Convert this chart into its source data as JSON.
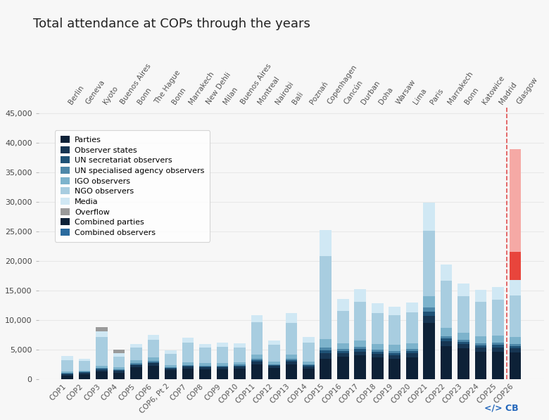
{
  "title": "Total attendance at COPs through the years",
  "cops": [
    "COP1",
    "COP2",
    "COP3",
    "COP4",
    "COP5",
    "COP6",
    "COP6, Pt 2",
    "COP7",
    "COP8",
    "COP9",
    "COP10",
    "COP11",
    "COP12",
    "COP13",
    "COP14",
    "COP15",
    "COP16",
    "COP17",
    "COP18",
    "COP19",
    "COP20",
    "COP21",
    "COP22",
    "COP23",
    "COP24",
    "COP25",
    "COP26"
  ],
  "cities": [
    "Berlin",
    "Geneva",
    "Kyoto",
    "Buenos Aires",
    "Bonn",
    "The Hague",
    "Bonn",
    "Marrakech",
    "New Dehli",
    "Milan",
    "Buenos Aires",
    "Montreal",
    "Nairobi",
    "Bali",
    "Poznań",
    "Copenhagen",
    "Cancún",
    "Durban",
    "Doha",
    "Warsaw",
    "Lima",
    "Paris",
    "Marrakech",
    "Bonn",
    "Katowice",
    "Madrid",
    "Glasgow"
  ],
  "parties": [
    650,
    850,
    1300,
    1100,
    2000,
    2300,
    1500,
    1800,
    1700,
    1700,
    1800,
    2500,
    1900,
    2500,
    1800,
    3500,
    3800,
    4000,
    3700,
    3500,
    3700,
    9500,
    5600,
    5200,
    4600,
    4700,
    4500
  ],
  "observer_st": [
    200,
    200,
    300,
    300,
    350,
    400,
    250,
    300,
    280,
    300,
    320,
    450,
    320,
    450,
    350,
    900,
    600,
    700,
    600,
    600,
    650,
    1200,
    800,
    700,
    700,
    700,
    700
  ],
  "un_sec": [
    100,
    100,
    150,
    150,
    180,
    200,
    120,
    150,
    150,
    150,
    160,
    250,
    160,
    250,
    180,
    500,
    350,
    400,
    350,
    350,
    360,
    700,
    450,
    400,
    400,
    400,
    400
  ],
  "un_spec": [
    100,
    100,
    150,
    150,
    180,
    200,
    120,
    150,
    150,
    150,
    160,
    250,
    160,
    250,
    180,
    500,
    350,
    400,
    350,
    350,
    360,
    700,
    450,
    400,
    400,
    400,
    400
  ],
  "igo": [
    200,
    200,
    400,
    350,
    450,
    550,
    350,
    450,
    420,
    450,
    470,
    700,
    470,
    700,
    520,
    1400,
    1000,
    1100,
    1000,
    1000,
    1050,
    2000,
    1400,
    1200,
    1200,
    1200,
    1200
  ],
  "ngo": [
    2000,
    1600,
    4800,
    1800,
    2200,
    3000,
    1900,
    3300,
    2600,
    2700,
    2500,
    5500,
    2800,
    5400,
    3200,
    14000,
    5500,
    6500,
    5200,
    5000,
    5200,
    11000,
    8000,
    6200,
    5800,
    6000,
    7000
  ],
  "media": [
    650,
    450,
    1000,
    600,
    600,
    900,
    600,
    900,
    700,
    700,
    700,
    1200,
    700,
    1600,
    900,
    4500,
    2000,
    2100,
    1700,
    1500,
    1700,
    4800,
    2700,
    2100,
    2000,
    2200,
    2600
  ],
  "overflow": [
    0,
    0,
    700,
    500,
    0,
    0,
    0,
    0,
    0,
    0,
    0,
    0,
    0,
    0,
    0,
    0,
    0,
    0,
    0,
    0,
    0,
    0,
    0,
    0,
    0,
    0,
    0
  ],
  "cop26_proj_light": 39000,
  "cop26_proj_dark": 21500,
  "cop26_red_dark": "#e8453c",
  "cop26_red_light": "#f5a9a5",
  "cop26_red_mid": "#f07570",
  "dashed_line_color": "#e05050",
  "colors": {
    "parties": "#0d2137",
    "observer_st": "#163552",
    "un_sec": "#1f5276",
    "un_spec": "#4d87a8",
    "igo": "#7db3cc",
    "ngo": "#a8cde0",
    "media": "#d0e8f4",
    "overflow": "#9a9a9a"
  },
  "ylim": [
    0,
    46000
  ],
  "yticks": [
    0,
    5000,
    10000,
    15000,
    20000,
    25000,
    30000,
    35000,
    40000,
    45000
  ],
  "bg_color": "#f7f7f7",
  "grid_color": "#e8e8e8",
  "legend_items": [
    [
      "Parties",
      "#0d2137"
    ],
    [
      "Observer states",
      "#163552"
    ],
    [
      "UN secretariat observers",
      "#1f5276"
    ],
    [
      "UN specialised agency observers",
      "#4d87a8"
    ],
    [
      "IGO observers",
      "#7db3cc"
    ],
    [
      "NGO observers",
      "#a8cde0"
    ],
    [
      "Media",
      "#d0e8f4"
    ],
    [
      "Overflow",
      "#9a9a9a"
    ],
    [
      "Combined parties",
      "#0d2137"
    ],
    [
      "Combined observers",
      "#2a6a9e"
    ]
  ]
}
